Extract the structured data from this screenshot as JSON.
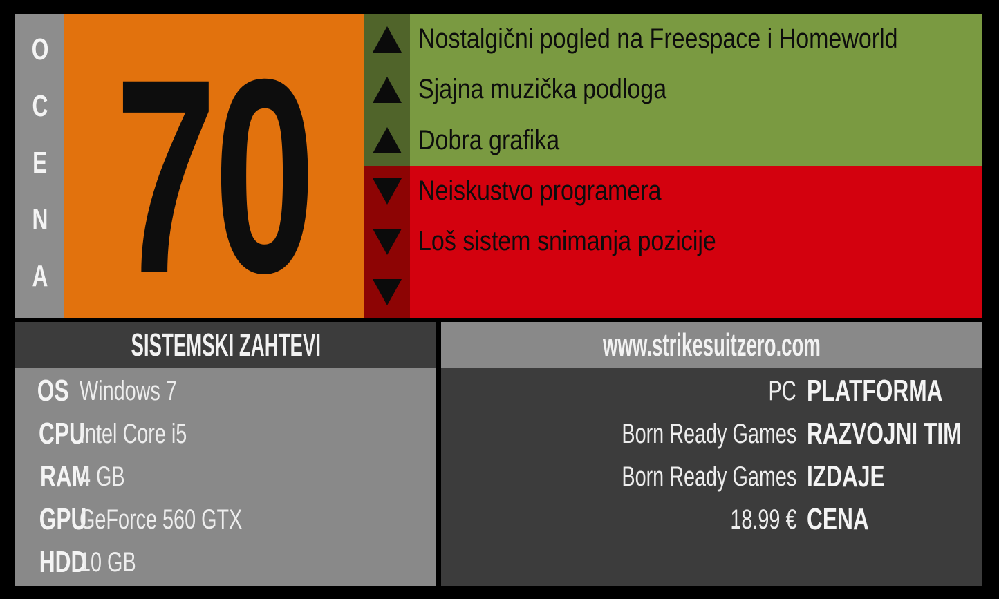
{
  "score": {
    "vertical_label": "OCENA",
    "letters": [
      "O",
      "C",
      "E",
      "N",
      "A"
    ],
    "value": "70"
  },
  "pros": [
    "Nostalgični pogled na Freespace i Homeworld",
    "Sjajna muzička podloga",
    "Dobra grafika"
  ],
  "cons": [
    "Neiskustvo programera",
    "Loš sistem snimanja pozicije",
    ""
  ],
  "system_requirements": {
    "title": "SISTEMSKI ZAHTEVI",
    "rows": [
      {
        "label": "OS",
        "value": "Windows 7"
      },
      {
        "label": "CPU",
        "value": "Intel Core i5"
      },
      {
        "label": "RAM",
        "value": "4 GB"
      },
      {
        "label": "GPU",
        "value": "GeForce 560 GTX"
      },
      {
        "label": "HDD",
        "value": "10 GB"
      }
    ]
  },
  "game_info": {
    "website": "www.strikesuitzero.com",
    "rows": [
      {
        "value": "PC",
        "label": "PLATFORMA"
      },
      {
        "value": "Born Ready Games",
        "label": "RAZVOJNI TIM"
      },
      {
        "value": "Born Ready Games",
        "label": "IZDAJE"
      },
      {
        "value": "18.99 €",
        "label": "CENA"
      }
    ]
  },
  "colors": {
    "background": "#000000",
    "score_strip": "#8D8D8D",
    "score_box": "#E2720D",
    "pros_arrow_bg": "#50642A",
    "pros_bg": "#7A9A41",
    "cons_arrow_bg": "#8D0404",
    "cons_bg": "#D3010E",
    "panel_dark": "#3C3C3C",
    "panel_gray": "#898989",
    "text_dark": "#0D0D0D",
    "text_light": "#F2F2F2"
  }
}
